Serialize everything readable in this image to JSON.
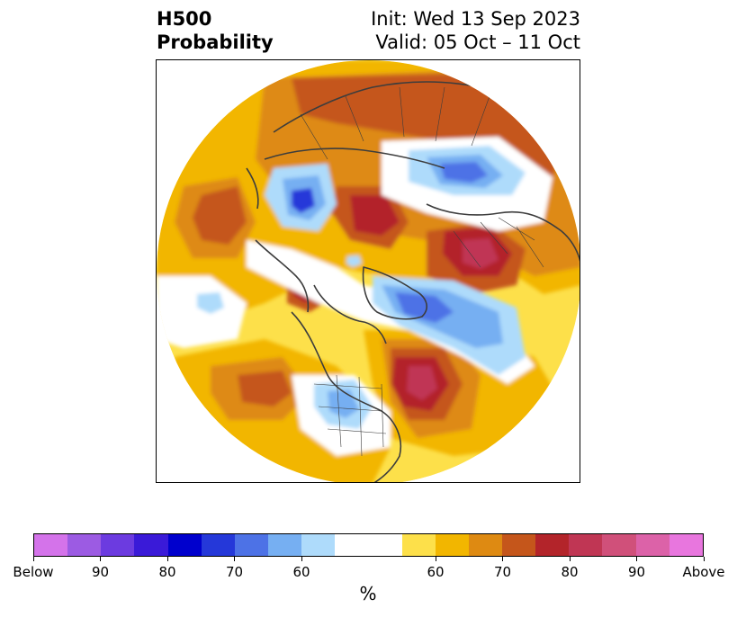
{
  "title": {
    "left_line1": "H500",
    "left_line2": "Probability",
    "right_line1": "Init: Wed 13 Sep 2023",
    "right_line2": "Valid: 05 Oct – 11 Oct"
  },
  "colorbar": {
    "label": "%",
    "colors": [
      "#d473ea",
      "#9c5be3",
      "#6c3be0",
      "#3a1ad8",
      "#0000cd",
      "#2538d9",
      "#4d72e6",
      "#76aff2",
      "#aedbfb",
      "#ffffff",
      "#ffffff",
      "#fde04a",
      "#f2b600",
      "#de8a12",
      "#c5561b",
      "#b3242a",
      "#c03654",
      "#d0507a",
      "#dc62a8",
      "#e876de"
    ],
    "ticks": [
      "Below",
      "90",
      "80",
      "70",
      "60",
      "60",
      "70",
      "80",
      "90",
      "Above"
    ]
  },
  "map": {
    "projection": "north-polar-stereographic",
    "palette": {
      "yellow": "#fde04a",
      "gold": "#f2b600",
      "orange": "#de8a12",
      "dark_orange": "#c5561b",
      "red": "#b3242a",
      "crimson": "#c03654",
      "pale_blue": "#aedbfb",
      "light_blue": "#76aff2",
      "mid_blue": "#4d72e6",
      "blue": "#2538d9",
      "coast": "#3d3d3d"
    }
  }
}
